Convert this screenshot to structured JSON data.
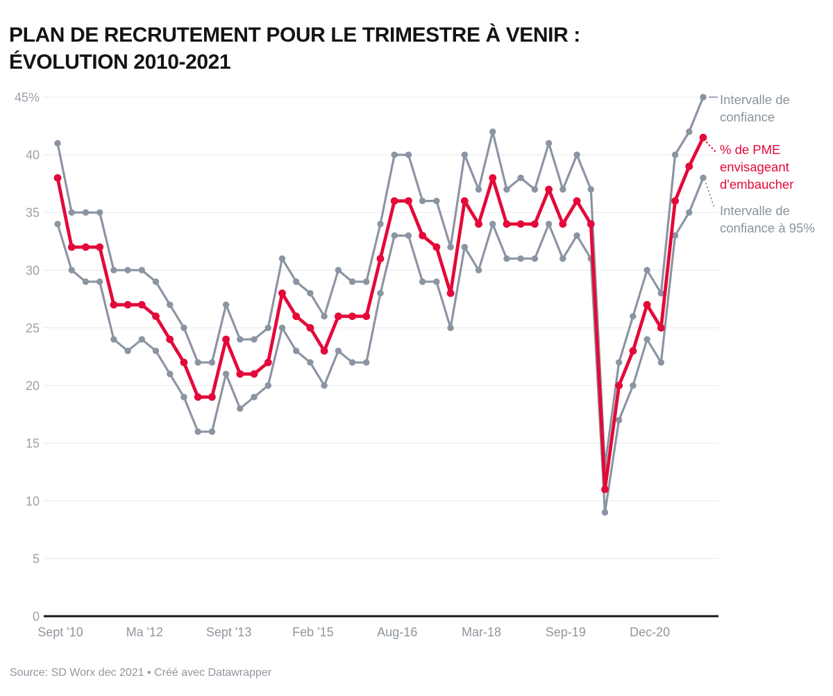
{
  "title": "PLAN DE RECRUTEMENT POUR LE TRIMESTRE À VENIR :\nÉVOLUTION 2010-2021",
  "legend": {
    "upper": "Intervalle de confiance",
    "main": "% de PME envisageant d'embaucher",
    "lower": "Intervalle de confiance à 95%"
  },
  "footer": "Source: SD Worx dec 2021 • Créé avec Datawrapper",
  "colors": {
    "accent_red": "#e40939",
    "line_gray": "#8b94a2",
    "grid": "#e8e8e8",
    "grid_top_dashed": "#cfcfcf",
    "axis_text": "#9aa1ab",
    "x_axis_text": "#8f969e",
    "baseline": "#18181a"
  },
  "chart_data": {
    "type": "line",
    "title": "Plan de recrutement pour le trimestre à venir : évolution 2010-2021",
    "ylabel": "",
    "xlabel": "",
    "ylim": [
      0,
      45
    ],
    "grid": true,
    "legend_position": "right",
    "y_ticks": [
      "45%",
      "40",
      "35",
      "30",
      "25",
      "20",
      "15",
      "10",
      "5",
      "0"
    ],
    "y_tick_values": [
      45,
      40,
      35,
      30,
      25,
      20,
      15,
      10,
      5,
      0
    ],
    "x_tick_labels": [
      "Sept '10",
      "Ma '12",
      "Sept '13",
      "Feb '15",
      "Aug-16",
      "Mar-18",
      "Sep-19",
      "Dec-20"
    ],
    "x_tick_indices": [
      0,
      6,
      12,
      18,
      24,
      30,
      36,
      42
    ],
    "n_points": 47,
    "series": [
      {
        "name": "Intervalle de confiance (borne haute)",
        "color": "#8b94a2",
        "values": [
          41,
          35,
          35,
          35,
          30,
          30,
          30,
          29,
          27,
          25,
          22,
          22,
          27,
          24,
          24,
          25,
          31,
          29,
          28,
          26,
          30,
          29,
          29,
          34,
          40,
          40,
          36,
          36,
          32,
          40,
          37,
          42,
          37,
          38,
          37,
          41,
          37,
          40,
          37,
          13,
          22,
          26,
          30,
          28,
          40,
          42,
          45
        ]
      },
      {
        "name": "% de PME envisageant d'embaucher",
        "color": "#e40939",
        "values": [
          38,
          32,
          32,
          32,
          27,
          27,
          27,
          26,
          24,
          22,
          19,
          19,
          24,
          21,
          21,
          22,
          28,
          26,
          25,
          23,
          26,
          26,
          26,
          31,
          36,
          36,
          33,
          32,
          28,
          36,
          34,
          38,
          34,
          34,
          34,
          37,
          34,
          36,
          34,
          11,
          20,
          23,
          27,
          25,
          36,
          39,
          41.5
        ]
      },
      {
        "name": "Intervalle de confiance à 95% (borne basse)",
        "color": "#8b94a2",
        "values": [
          34,
          30,
          29,
          29,
          24,
          23,
          24,
          23,
          21,
          19,
          16,
          16,
          21,
          18,
          19,
          20,
          25,
          23,
          22,
          20,
          23,
          22,
          22,
          28,
          33,
          33,
          29,
          29,
          25,
          32,
          30,
          34,
          31,
          31,
          31,
          34,
          31,
          33,
          31,
          9,
          17,
          20,
          24,
          22,
          33,
          35,
          38
        ]
      }
    ]
  }
}
